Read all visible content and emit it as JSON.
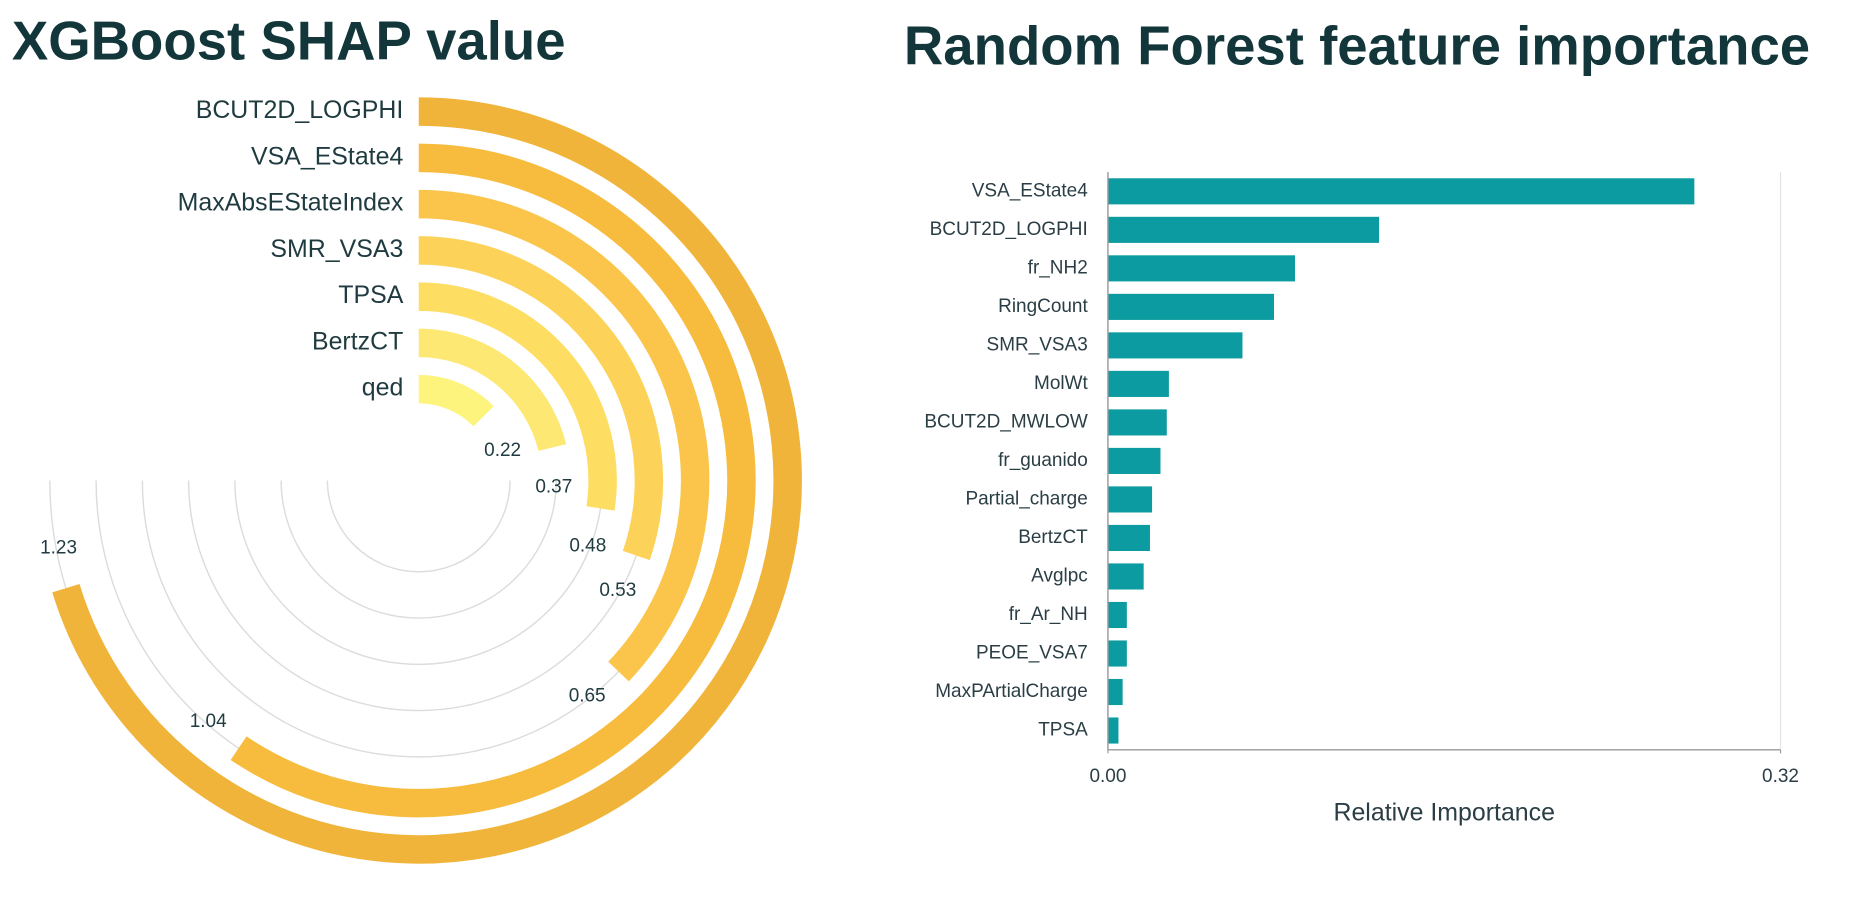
{
  "chart_data": [
    {
      "type": "radial_bar",
      "title": "XGBoost SHAP value",
      "categories": [
        "BCUT2D_LOGPHI",
        "VSA_EState4",
        "MaxAbsEStateIndex",
        "SMR_VSA3",
        "TPSA",
        "BertzCT",
        "qed"
      ],
      "values": [
        1.23,
        1.04,
        0.65,
        0.53,
        0.48,
        0.37,
        0.22
      ],
      "colors": [
        "#f0b43a",
        "#f7bb3e",
        "#fac54a",
        "#fcd258",
        "#fedd63",
        "#fde874",
        "#fdf47d"
      ],
      "ylim": [
        0,
        1.75
      ],
      "grid": true
    },
    {
      "type": "bar",
      "horizontal": true,
      "title": "Random Forest feature importance",
      "categories": [
        "VSA_EState4",
        "BCUT2D_LOGPHI",
        "fr_NH2",
        "RingCount",
        "SMR_VSA3",
        "MolWt",
        "BCUT2D_MWLOW",
        "fr_guanido",
        "Partial_charge",
        "BertzCT",
        "Avglpc",
        "fr_Ar_NH",
        "PEOE_VSA7",
        "MaxPArtialCharge",
        "TPSA"
      ],
      "values": [
        0.279,
        0.129,
        0.089,
        0.079,
        0.064,
        0.029,
        0.028,
        0.025,
        0.021,
        0.02,
        0.017,
        0.009,
        0.009,
        0.007,
        0.005
      ],
      "color": "#0c9ba0",
      "xlabel": "Relative Importance",
      "xlim": [
        0,
        0.32
      ],
      "xticks": [
        {
          "value": 0,
          "label": "0.00"
        },
        0.32
      ]
    }
  ]
}
